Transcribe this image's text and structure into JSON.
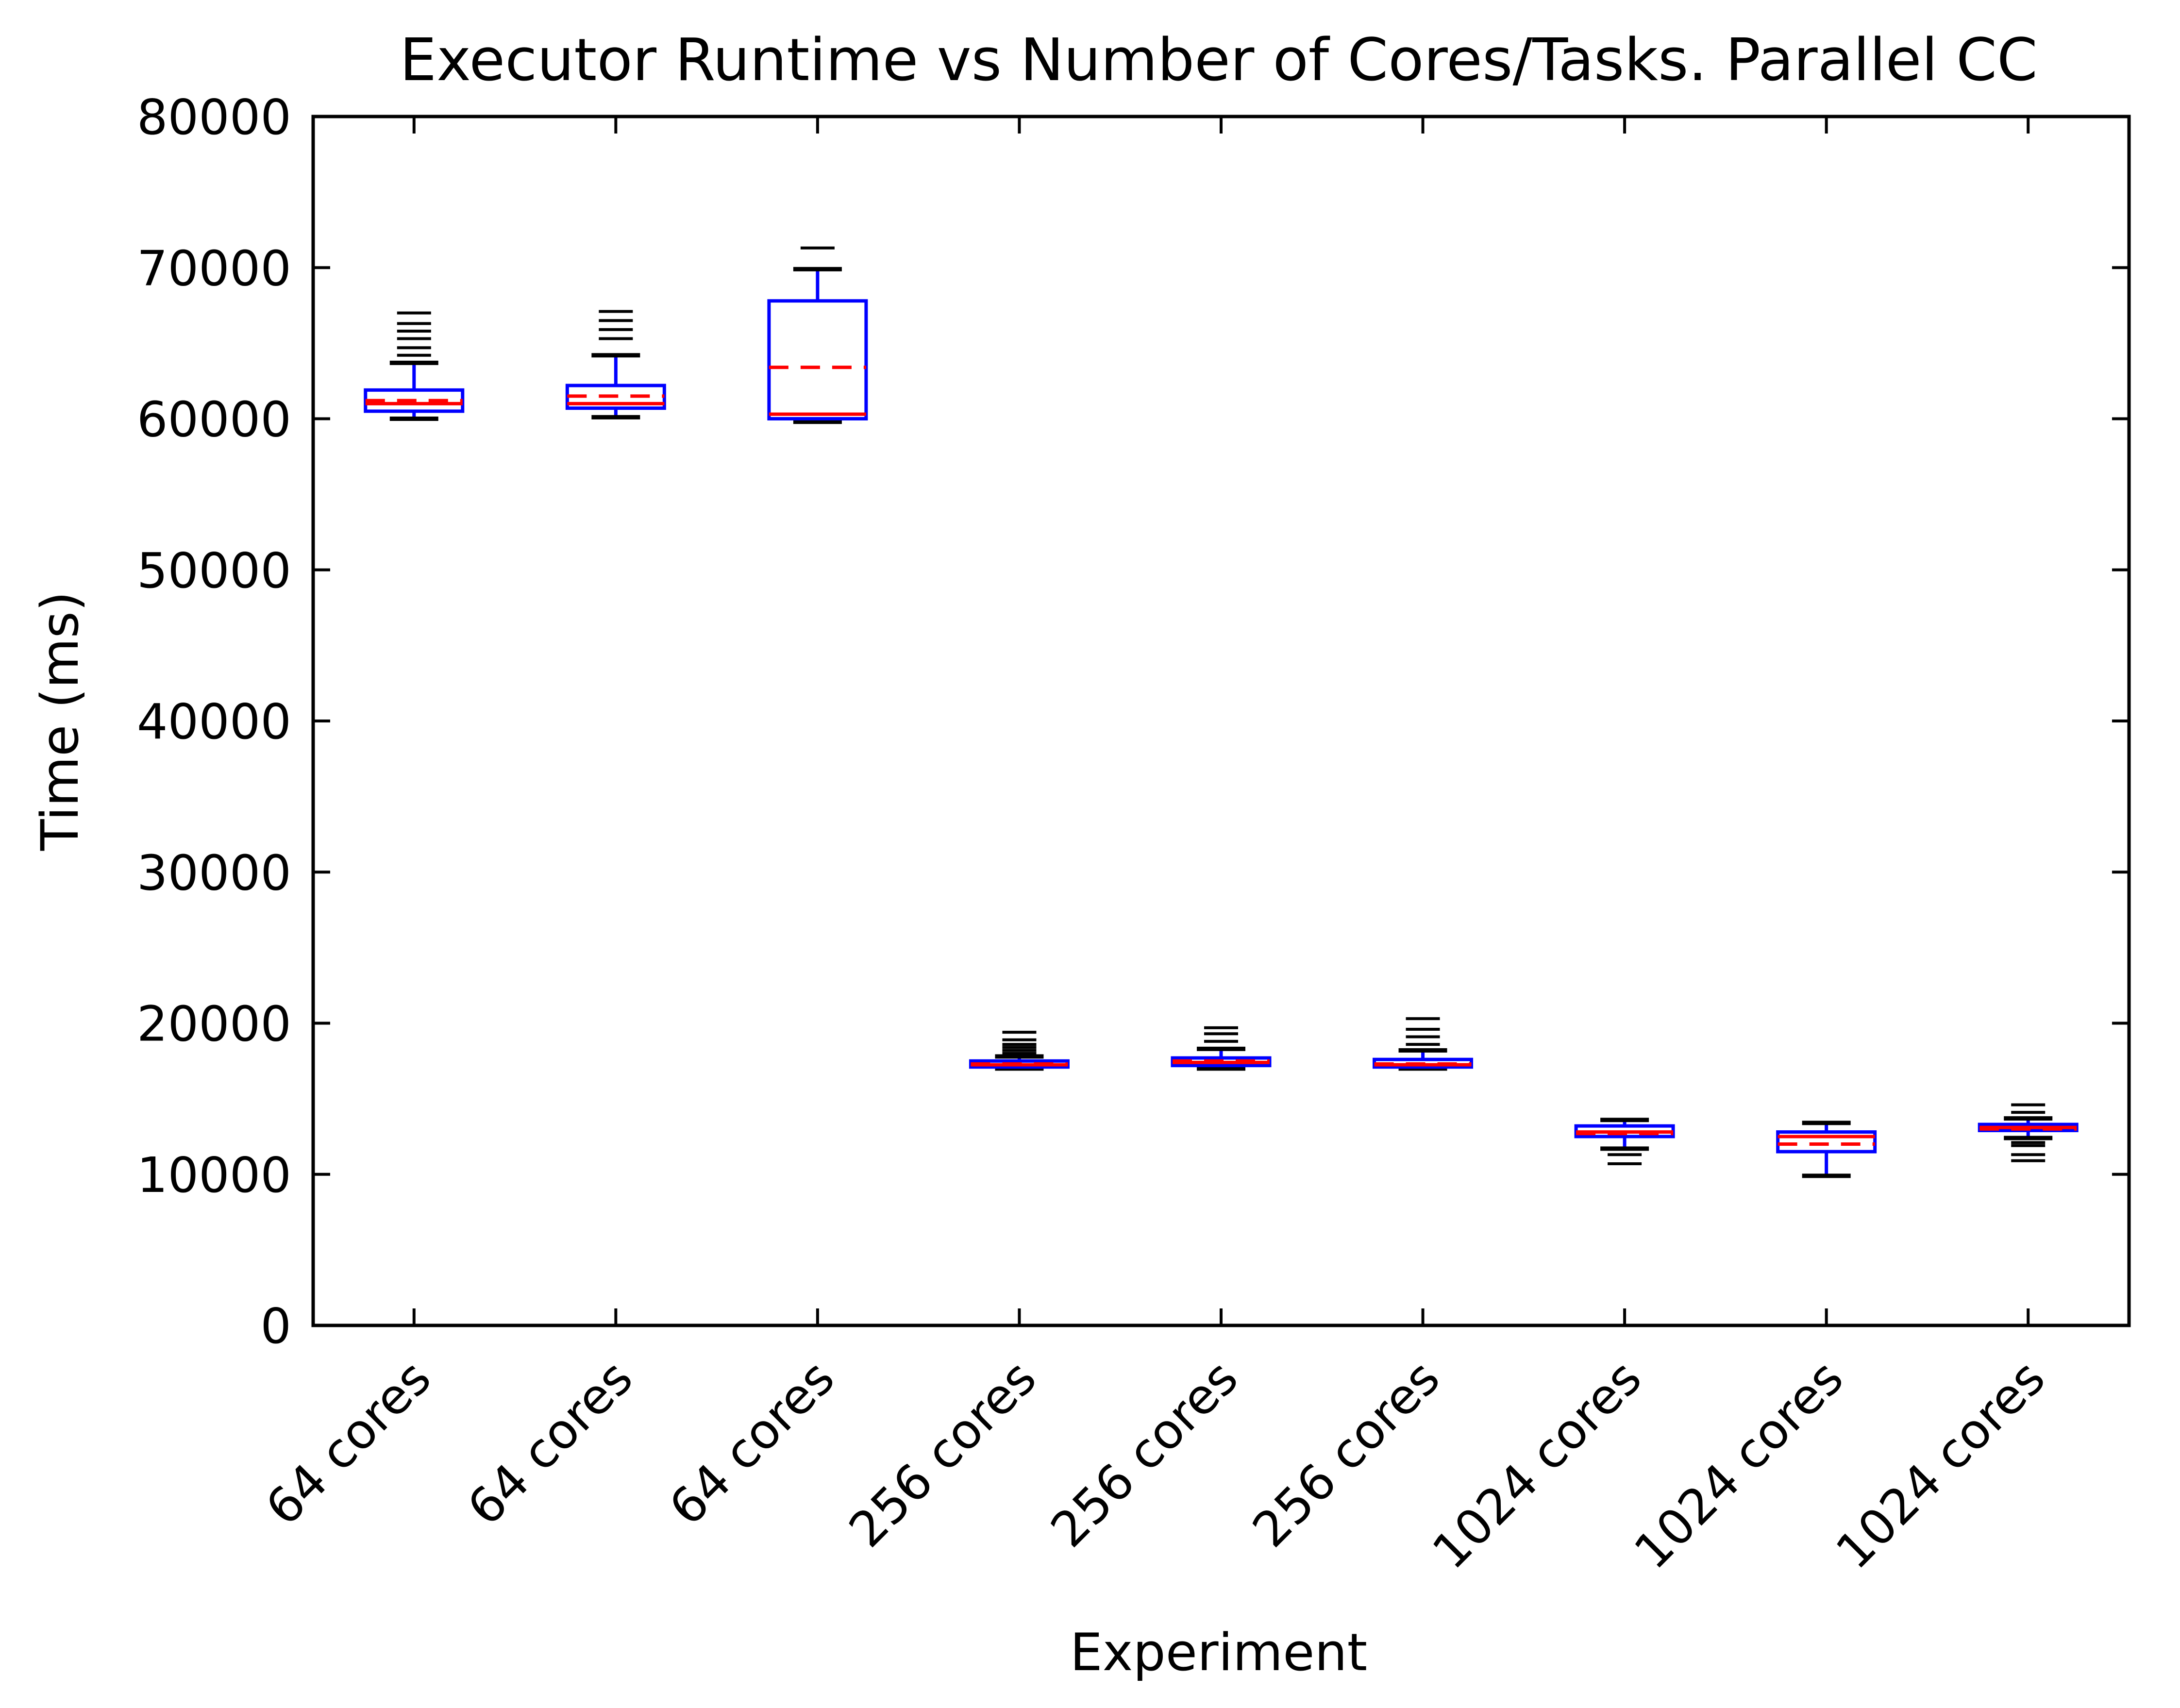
{
  "chart_data": {
    "type": "boxplot",
    "title": "Executor Runtime vs Number of Cores/Tasks. Parallel CC",
    "xlabel": "Experiment",
    "ylabel": "Time (ms)",
    "ylim": [
      0,
      80000
    ],
    "yticks": [
      0,
      10000,
      20000,
      30000,
      40000,
      50000,
      60000,
      70000,
      80000
    ],
    "ytick_labels": [
      "0",
      "10000",
      "20000",
      "30000",
      "40000",
      "50000",
      "60000",
      "70000",
      "80000"
    ],
    "categories": [
      "64 cores",
      "64 cores",
      "64 cores",
      "256 cores",
      "256 cores",
      "256 cores",
      "1024 cores",
      "1024 cores",
      "1024 cores"
    ],
    "colors": {
      "box": "#0000ff",
      "median": "#ff0000",
      "mean": "#ff0000",
      "whisker_cap": "#000000",
      "flier": "#000000",
      "axis": "#000000"
    },
    "boxes": [
      {
        "whislo": 60000,
        "q1": 60500,
        "med": 61000,
        "mean": 61200,
        "q3": 61900,
        "whishi": 63700,
        "fliers": [
          64200,
          64700,
          65300,
          65800,
          66300,
          67000
        ]
      },
      {
        "whislo": 60100,
        "q1": 60700,
        "med": 61000,
        "mean": 61500,
        "q3": 62200,
        "whishi": 64200,
        "fliers": [
          65300,
          65900,
          66500,
          67100
        ]
      },
      {
        "whislo": 59800,
        "q1": 60000,
        "med": 60300,
        "mean": 63400,
        "q3": 67800,
        "whishi": 69900,
        "fliers": [
          71300
        ]
      },
      {
        "whislo": 17000,
        "q1": 17100,
        "med": 17250,
        "mean": 17300,
        "q3": 17500,
        "whishi": 17800,
        "fliers": [
          18000,
          18200,
          18400,
          18600,
          18900,
          19400
        ]
      },
      {
        "whislo": 17000,
        "q1": 17200,
        "med": 17400,
        "mean": 17500,
        "q3": 17700,
        "whishi": 18300,
        "fliers": [
          18800,
          19300,
          19700
        ]
      },
      {
        "whislo": 17000,
        "q1": 17100,
        "med": 17250,
        "mean": 17300,
        "q3": 17600,
        "whishi": 18200,
        "fliers": [
          18600,
          19100,
          19600,
          20300
        ]
      },
      {
        "whislo": 11700,
        "q1": 12500,
        "med": 12800,
        "mean": 12700,
        "q3": 13200,
        "whishi": 13600,
        "fliers": [
          11300,
          10700
        ]
      },
      {
        "whislo": 9900,
        "q1": 11500,
        "med": 12500,
        "mean": 12000,
        "q3": 12800,
        "whishi": 13400,
        "fliers": []
      },
      {
        "whislo": 12400,
        "q1": 12900,
        "med": 13100,
        "mean": 13000,
        "q3": 13300,
        "whishi": 13700,
        "fliers": [
          12100,
          11900,
          11300,
          10900,
          14100,
          14600
        ]
      }
    ]
  }
}
